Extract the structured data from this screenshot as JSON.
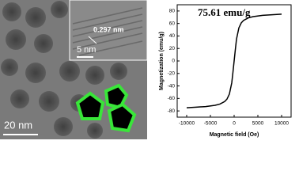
{
  "image": {
    "labels": [
      "0.297 nm",
      "5 nm",
      "20 nm"
    ]
  },
  "chart_data": {
    "type": "line",
    "annotation": "75.61 emu/g",
    "x_label": "Magnetic field (Oe)",
    "y_label": "Magnetization (emu/g)",
    "x": [
      -10000,
      -8000,
      -6000,
      -4000,
      -3000,
      -2000,
      -1500,
      -1000,
      -500,
      -250,
      0,
      250,
      500,
      1000,
      1500,
      2000,
      3000,
      4000,
      6000,
      8000,
      10000
    ],
    "values": [
      -75,
      -74,
      -73,
      -71,
      -69,
      -65,
      -61,
      -53,
      -35,
      -18,
      0,
      18,
      35,
      53,
      61,
      65,
      69,
      71,
      73,
      74,
      75
    ],
    "color": "#000000",
    "xlim": [
      -12000,
      12000
    ],
    "xticks": [
      -10000,
      -5000,
      0,
      5000,
      10000
    ],
    "ylim": [
      -90,
      90
    ],
    "yticks": [
      -80,
      -60,
      -40,
      -20,
      0,
      20,
      40,
      60,
      80
    ],
    "grid": false
  }
}
